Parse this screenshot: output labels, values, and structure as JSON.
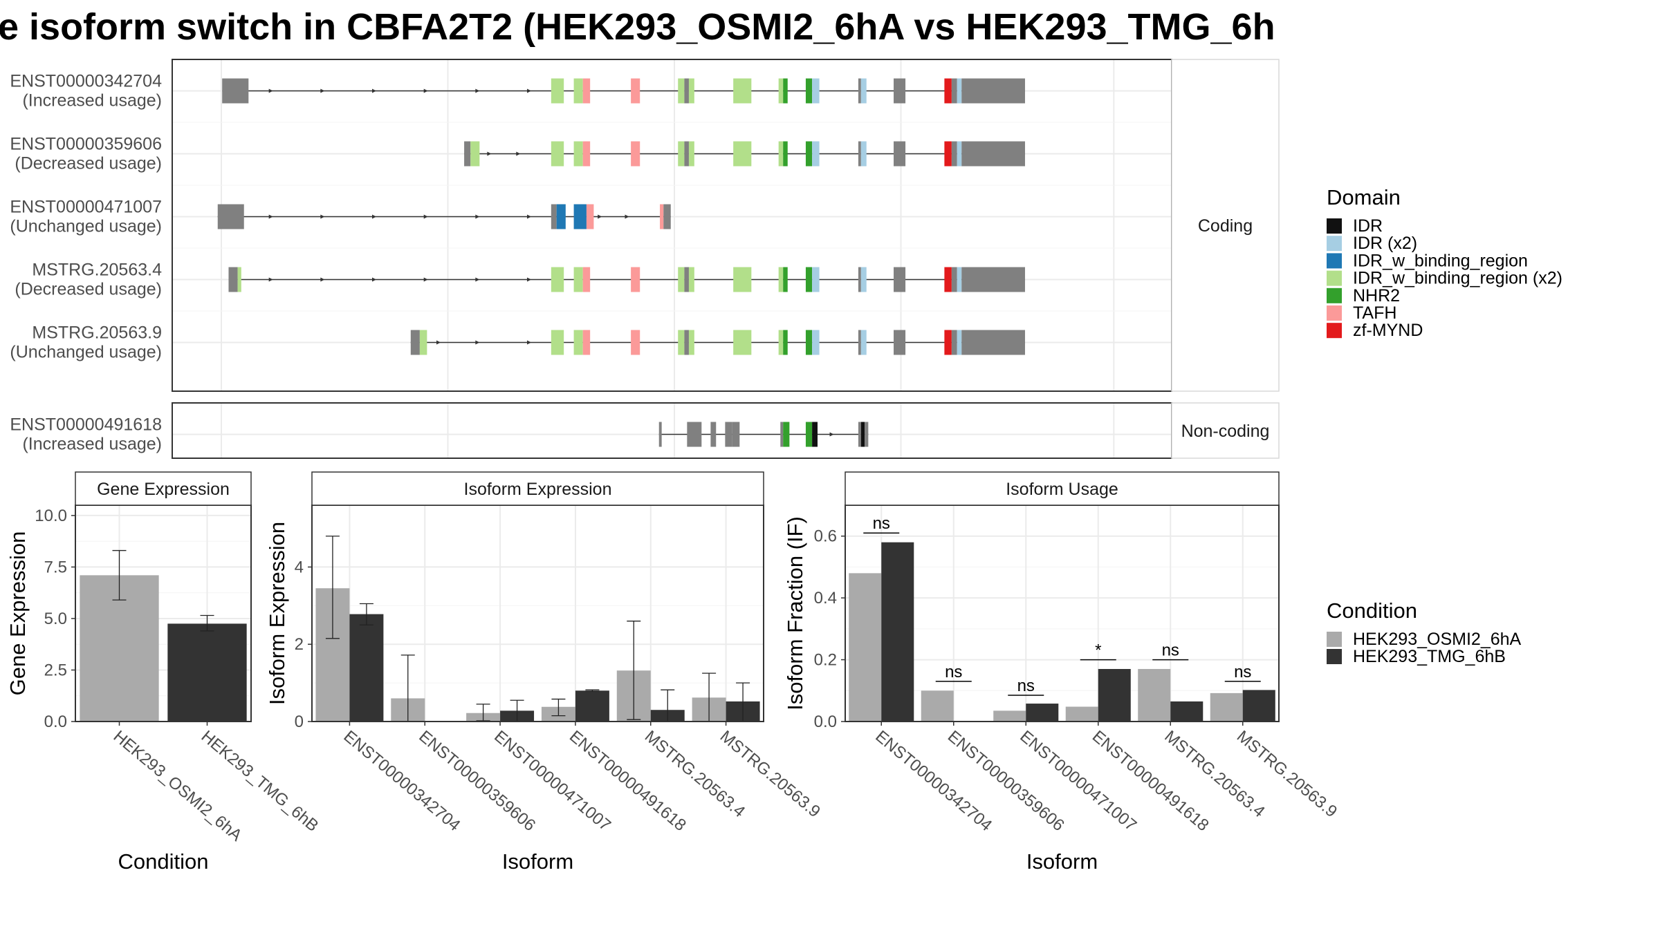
{
  "title": "e isoform switch in CBFA2T2 (HEK293_OSMI2_6hA vs HEK293_TMG_6h",
  "colors": {
    "IDR": "#111111",
    "IDR (x2)": "#a6cee3",
    "IDR_w_binding_region": "#1f78b4",
    "IDR_w_binding_region (x2)": "#b2df8a",
    "NHR2": "#33a02c",
    "TAFH": "#fb9a99",
    "zf-MYND": "#e31a1c",
    "exon": "#808080",
    "cond1": "#aaaaaa",
    "cond2": "#333333"
  },
  "legend_domain": {
    "title": "Domain",
    "items": [
      {
        "label": "IDR",
        "color": "#111111"
      },
      {
        "label": "IDR (x2)",
        "color": "#a6cee3"
      },
      {
        "label": "IDR_w_binding_region",
        "color": "#1f78b4"
      },
      {
        "label": "IDR_w_binding_region (x2)",
        "color": "#b2df8a"
      },
      {
        "label": "NHR2",
        "color": "#33a02c"
      },
      {
        "label": "TAFH",
        "color": "#fb9a99"
      },
      {
        "label": "zf-MYND",
        "color": "#e31a1c"
      }
    ]
  },
  "legend_condition": {
    "title": "Condition",
    "items": [
      {
        "label": "HEK293_OSMI2_6hA",
        "color": "#aaaaaa"
      },
      {
        "label": "HEK293_TMG_6hB",
        "color": "#333333"
      }
    ]
  },
  "structure": {
    "coding_strip": "Coding",
    "noncoding_strip": "Non-coding",
    "coding": [
      {
        "id": "ENST00000342704",
        "usage": "(Increased usage)",
        "segments": [
          [
            1,
            13,
            "exon"
          ],
          [
            13,
            17,
            "IDR_w_binding_region (x2)"
          ],
          [
            364,
            378,
            "IDR_w_binding_region (x2)"
          ],
          [
            389,
            399,
            "IDR_w_binding_region (x2)"
          ],
          [
            399,
            407,
            "TAFH"
          ],
          [
            452,
            462,
            "TAFH"
          ],
          [
            504,
            511,
            "IDR_w_binding_region (x2)"
          ],
          [
            511,
            516,
            "exon"
          ],
          [
            516,
            522,
            "IDR_w_binding_region (x2)"
          ],
          [
            565,
            585,
            "IDR_w_binding_region (x2)"
          ],
          [
            615,
            620,
            "IDR_w_binding_region (x2)"
          ],
          [
            620,
            625,
            "NHR2"
          ],
          [
            645,
            652,
            "NHR2"
          ],
          [
            652,
            660,
            "IDR (x2)"
          ],
          [
            703,
            706,
            "exon"
          ],
          [
            706,
            712,
            "IDR (x2)"
          ],
          [
            742,
            755,
            "exon"
          ],
          [
            798,
            806,
            "zf-MYND"
          ],
          [
            806,
            812,
            "exon"
          ],
          [
            812,
            817,
            "IDR (x2)"
          ],
          [
            817,
            887,
            "exon"
          ]
        ],
        "arrows": [
          57,
          114,
          171,
          228,
          285,
          342
        ],
        "rects": [
          [
            1,
            30,
            "exon"
          ]
        ]
      },
      {
        "id": "ENST00000359606",
        "usage": "(Decreased usage)",
        "segments": [
          [
            268,
            275,
            "exon"
          ],
          [
            275,
            285,
            "IDR_w_binding_region (x2)"
          ],
          [
            364,
            378,
            "IDR_w_binding_region (x2)"
          ],
          [
            389,
            399,
            "IDR_w_binding_region (x2)"
          ],
          [
            399,
            407,
            "TAFH"
          ],
          [
            452,
            462,
            "TAFH"
          ],
          [
            504,
            511,
            "IDR_w_binding_region (x2)"
          ],
          [
            511,
            516,
            "exon"
          ],
          [
            516,
            522,
            "IDR_w_binding_region (x2)"
          ],
          [
            565,
            585,
            "IDR_w_binding_region (x2)"
          ],
          [
            615,
            620,
            "IDR_w_binding_region (x2)"
          ],
          [
            620,
            625,
            "NHR2"
          ],
          [
            645,
            652,
            "NHR2"
          ],
          [
            652,
            660,
            "IDR (x2)"
          ],
          [
            703,
            706,
            "exon"
          ],
          [
            706,
            712,
            "IDR (x2)"
          ],
          [
            742,
            755,
            "exon"
          ],
          [
            798,
            806,
            "zf-MYND"
          ],
          [
            806,
            812,
            "exon"
          ],
          [
            812,
            817,
            "IDR (x2)"
          ],
          [
            817,
            887,
            "exon"
          ]
        ],
        "arrows": [
          298,
          330
        ],
        "rects": []
      },
      {
        "id": "ENST00000471007",
        "usage": "(Unchanged usage)",
        "segments": [
          [
            -4,
            25,
            "exon"
          ],
          [
            364,
            370,
            "exon"
          ],
          [
            370,
            380,
            "IDR_w_binding_region"
          ],
          [
            389,
            403,
            "IDR_w_binding_region"
          ],
          [
            403,
            411,
            "TAFH"
          ],
          [
            484,
            488,
            "TAFH"
          ],
          [
            488,
            496,
            "exon"
          ]
        ],
        "arrows": [
          57,
          114,
          171,
          228,
          285,
          342,
          420,
          450
        ],
        "rects": []
      },
      {
        "id": "MSTRG.20563.4",
        "usage": "(Decreased usage)",
        "segments": [
          [
            8,
            18,
            "exon"
          ],
          [
            18,
            22,
            "IDR_w_binding_region (x2)"
          ],
          [
            364,
            378,
            "IDR_w_binding_region (x2)"
          ],
          [
            389,
            399,
            "IDR_w_binding_region (x2)"
          ],
          [
            399,
            407,
            "TAFH"
          ],
          [
            452,
            462,
            "TAFH"
          ],
          [
            504,
            511,
            "IDR_w_binding_region (x2)"
          ],
          [
            511,
            516,
            "exon"
          ],
          [
            516,
            522,
            "IDR_w_binding_region (x2)"
          ],
          [
            565,
            585,
            "IDR_w_binding_region (x2)"
          ],
          [
            615,
            620,
            "IDR_w_binding_region (x2)"
          ],
          [
            620,
            625,
            "NHR2"
          ],
          [
            645,
            652,
            "NHR2"
          ],
          [
            652,
            660,
            "IDR (x2)"
          ],
          [
            703,
            706,
            "exon"
          ],
          [
            706,
            712,
            "IDR (x2)"
          ],
          [
            742,
            755,
            "exon"
          ],
          [
            798,
            806,
            "zf-MYND"
          ],
          [
            806,
            812,
            "exon"
          ],
          [
            812,
            817,
            "IDR (x2)"
          ],
          [
            817,
            887,
            "exon"
          ]
        ],
        "arrows": [
          57,
          114,
          171,
          228,
          285,
          342
        ],
        "rects": []
      },
      {
        "id": "MSTRG.20563.9",
        "usage": "(Unchanged usage)",
        "segments": [
          [
            209,
            219,
            "exon"
          ],
          [
            219,
            227,
            "IDR_w_binding_region (x2)"
          ],
          [
            364,
            378,
            "IDR_w_binding_region (x2)"
          ],
          [
            389,
            399,
            "IDR_w_binding_region (x2)"
          ],
          [
            399,
            407,
            "TAFH"
          ],
          [
            452,
            462,
            "TAFH"
          ],
          [
            504,
            511,
            "IDR_w_binding_region (x2)"
          ],
          [
            511,
            516,
            "exon"
          ],
          [
            516,
            522,
            "IDR_w_binding_region (x2)"
          ],
          [
            565,
            585,
            "IDR_w_binding_region (x2)"
          ],
          [
            615,
            620,
            "IDR_w_binding_region (x2)"
          ],
          [
            620,
            625,
            "NHR2"
          ],
          [
            645,
            652,
            "NHR2"
          ],
          [
            652,
            660,
            "IDR (x2)"
          ],
          [
            703,
            706,
            "exon"
          ],
          [
            706,
            712,
            "IDR (x2)"
          ],
          [
            742,
            755,
            "exon"
          ],
          [
            798,
            806,
            "zf-MYND"
          ],
          [
            806,
            812,
            "exon"
          ],
          [
            812,
            817,
            "IDR (x2)"
          ],
          [
            817,
            887,
            "exon"
          ]
        ],
        "arrows": [
          242,
          285,
          342
        ],
        "rects": []
      }
    ],
    "noncoding": [
      {
        "id": "ENST00000491618",
        "usage": "(Increased usage)",
        "segments": [
          [
            483,
            486,
            "exon"
          ],
          [
            514,
            530,
            "exon"
          ],
          [
            540,
            546,
            "exon"
          ],
          [
            556,
            564,
            "exon"
          ],
          [
            564,
            572,
            "exon"
          ],
          [
            617,
            620,
            "exon"
          ],
          [
            620,
            627,
            "NHR2"
          ],
          [
            645,
            652,
            "NHR2"
          ],
          [
            652,
            658,
            "IDR"
          ],
          [
            703,
            706,
            "exon"
          ],
          [
            706,
            710,
            "IDR"
          ],
          [
            710,
            714,
            "exon"
          ]
        ],
        "arrows": [
          676
        ],
        "rects": []
      }
    ]
  },
  "chart_data": [
    {
      "type": "bar",
      "title": "Gene Expression",
      "xlabel": "Condition",
      "ylabel": "Gene Expression",
      "ylim": [
        0,
        10.5
      ],
      "yticks": [
        0.0,
        2.5,
        5.0,
        7.5,
        10.0
      ],
      "ytick_labels": [
        "0.0",
        "2.5",
        "5.0",
        "7.5",
        "10.0"
      ],
      "categories": [
        "HEK293_OSMI2_6hA",
        "HEK293_TMG_6hB"
      ],
      "values": [
        7.1,
        4.75
      ],
      "error_low": [
        5.9,
        4.4
      ],
      "error_high": [
        8.3,
        5.15
      ]
    },
    {
      "type": "bar",
      "title": "Isoform Expression",
      "xlabel": "Isoform",
      "ylabel": "Isoform Expression",
      "ylim": [
        0,
        5.6
      ],
      "yticks": [
        0,
        2,
        4
      ],
      "ytick_labels": [
        "0",
        "2",
        "4"
      ],
      "categories": [
        "ENST00000342704",
        "ENST00000359606",
        "ENST00000471007",
        "ENST00000491618",
        "MSTRG.20563.4",
        "MSTRG.20563.9"
      ],
      "series": [
        {
          "name": "HEK293_OSMI2_6hA",
          "values": [
            3.45,
            0.6,
            0.22,
            0.38,
            1.32,
            0.62
          ],
          "error_low": [
            2.15,
            0.0,
            0.02,
            0.15,
            0.05,
            0.0
          ],
          "error_high": [
            4.8,
            1.72,
            0.45,
            0.58,
            2.6,
            1.25
          ]
        },
        {
          "name": "HEK293_TMG_6hB",
          "values": [
            2.78,
            0.0,
            0.28,
            0.8,
            0.3,
            0.52
          ],
          "error_low": [
            2.5,
            0.0,
            0.0,
            0.78,
            0.0,
            0.0
          ],
          "error_high": [
            3.05,
            0.0,
            0.55,
            0.82,
            0.82,
            1.0
          ]
        }
      ]
    },
    {
      "type": "bar",
      "title": "Isoform Usage",
      "xlabel": "Isoform",
      "ylabel": "Isoform Fraction (IF)",
      "ylim": [
        0,
        0.7
      ],
      "yticks": [
        0.0,
        0.2,
        0.4,
        0.6
      ],
      "ytick_labels": [
        "0.0",
        "0.2",
        "0.4",
        "0.6"
      ],
      "categories": [
        "ENST00000342704",
        "ENST00000359606",
        "ENST00000471007",
        "ENST00000491618",
        "MSTRG.20563.4",
        "MSTRG.20563.9"
      ],
      "series": [
        {
          "name": "HEK293_OSMI2_6hA",
          "values": [
            0.48,
            0.1,
            0.035,
            0.048,
            0.17,
            0.092
          ]
        },
        {
          "name": "HEK293_TMG_6hB",
          "values": [
            0.58,
            0.0,
            0.058,
            0.17,
            0.065,
            0.102
          ]
        }
      ],
      "significance": [
        "ns",
        "ns",
        "ns",
        "*",
        "ns",
        "ns"
      ],
      "significance_level": [
        0.61,
        0.13,
        0.085,
        0.2,
        0.2,
        0.13
      ]
    }
  ]
}
